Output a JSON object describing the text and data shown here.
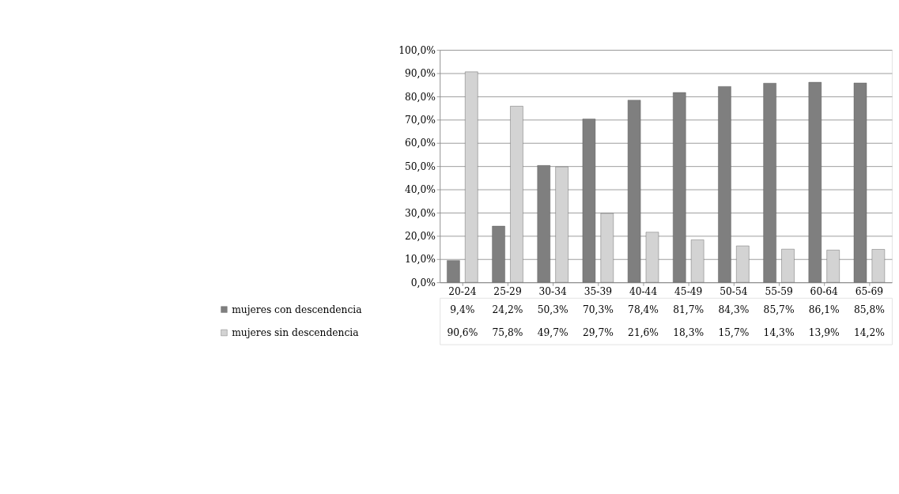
{
  "chart_data": {
    "type": "bar",
    "categories": [
      "20-24",
      "25-29",
      "30-34",
      "35-39",
      "40-44",
      "45-49",
      "50-54",
      "55-59",
      "60-64",
      "65-69"
    ],
    "series": [
      {
        "name": "mujeres con descendencia",
        "color": "#7f7f7f",
        "values": [
          9.4,
          24.2,
          50.3,
          70.3,
          78.4,
          81.7,
          84.3,
          85.7,
          86.1,
          85.8
        ],
        "value_labels": [
          "9,4%",
          "24,2%",
          "50,3%",
          "70,3%",
          "78,4%",
          "81,7%",
          "84,3%",
          "85,7%",
          "86,1%",
          "85,8%"
        ]
      },
      {
        "name": "mujeres sin descendencia",
        "color": "#d3d3d3",
        "values": [
          90.6,
          75.8,
          49.7,
          29.7,
          21.6,
          18.3,
          15.7,
          14.3,
          13.9,
          14.2
        ],
        "value_labels": [
          "90,6%",
          "75,8%",
          "49,7%",
          "29,7%",
          "21,6%",
          "18,3%",
          "15,7%",
          "14,3%",
          "13,9%",
          "14,2%"
        ]
      }
    ],
    "ylim": [
      0,
      100
    ],
    "yticks": [
      {
        "value": 0,
        "label": "0,0%"
      },
      {
        "value": 10,
        "label": "10,0%"
      },
      {
        "value": 20,
        "label": "20,0%"
      },
      {
        "value": 30,
        "label": "30,0%"
      },
      {
        "value": 40,
        "label": "40,0%"
      },
      {
        "value": 50,
        "label": "50,0%"
      },
      {
        "value": 60,
        "label": "60,0%"
      },
      {
        "value": 70,
        "label": "70,0%"
      },
      {
        "value": 80,
        "label": "80,0%"
      },
      {
        "value": 90,
        "label": "90,0%"
      },
      {
        "value": 100,
        "label": "100,0%"
      }
    ],
    "grid": "y",
    "legend": "bottom"
  }
}
